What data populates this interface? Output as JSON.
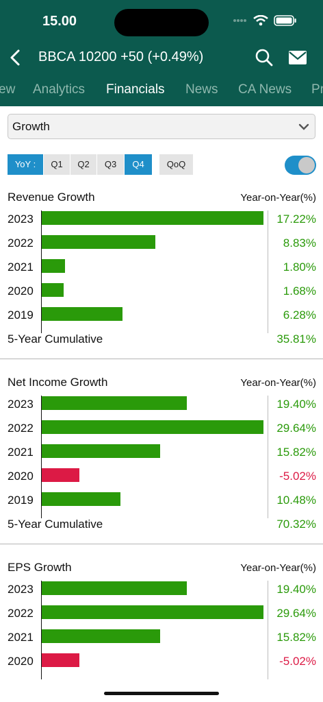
{
  "status": {
    "time": "15.00"
  },
  "header": {
    "title": "BBCA  10200 +50 (+0.49%)"
  },
  "tabs": [
    {
      "label": "ew"
    },
    {
      "label": "Analytics"
    },
    {
      "label": "Financials"
    },
    {
      "label": "News"
    },
    {
      "label": "CA News"
    },
    {
      "label": "Pr"
    }
  ],
  "select": {
    "value": "Growth"
  },
  "periods": [
    {
      "label": "YoY :"
    },
    {
      "label": "Q1"
    },
    {
      "label": "Q2"
    },
    {
      "label": "Q3"
    },
    {
      "label": "Q4"
    },
    {
      "label": "QoQ"
    }
  ],
  "colors": {
    "positive": "#2a9a0a",
    "negative": "#dc1a45",
    "header": "#0c5a4e",
    "accent": "#1f8fc9"
  },
  "sections": [
    {
      "title": "Revenue Growth",
      "subtitle": "Year-on-Year(%)",
      "rows": [
        {
          "year": "2023",
          "text": "17.22%",
          "value": 17.22
        },
        {
          "year": "2022",
          "text": "8.83%",
          "value": 8.83
        },
        {
          "year": "2021",
          "text": "1.80%",
          "value": 1.8
        },
        {
          "year": "2020",
          "text": "1.68%",
          "value": 1.68
        },
        {
          "year": "2019",
          "text": "6.28%",
          "value": 6.28
        }
      ],
      "cumulative_label": "5-Year Cumulative",
      "cumulative_value": "35.81%"
    },
    {
      "title": "Net Income Growth",
      "subtitle": "Year-on-Year(%)",
      "rows": [
        {
          "year": "2023",
          "text": "19.40%",
          "value": 19.4
        },
        {
          "year": "2022",
          "text": "29.64%",
          "value": 29.64
        },
        {
          "year": "2021",
          "text": "15.82%",
          "value": 15.82
        },
        {
          "year": "2020",
          "text": "-5.02%",
          "value": -5.02
        },
        {
          "year": "2019",
          "text": "10.48%",
          "value": 10.48
        }
      ],
      "cumulative_label": "5-Year Cumulative",
      "cumulative_value": "70.32%"
    },
    {
      "title": "EPS Growth",
      "subtitle": "Year-on-Year(%)",
      "rows": [
        {
          "year": "2023",
          "text": "19.40%",
          "value": 19.4
        },
        {
          "year": "2022",
          "text": "29.64%",
          "value": 29.64
        },
        {
          "year": "2021",
          "text": "15.82%",
          "value": 15.82
        },
        {
          "year": "2020",
          "text": "-5.02%",
          "value": -5.02
        }
      ],
      "cumulative_label": "",
      "cumulative_value": ""
    }
  ]
}
